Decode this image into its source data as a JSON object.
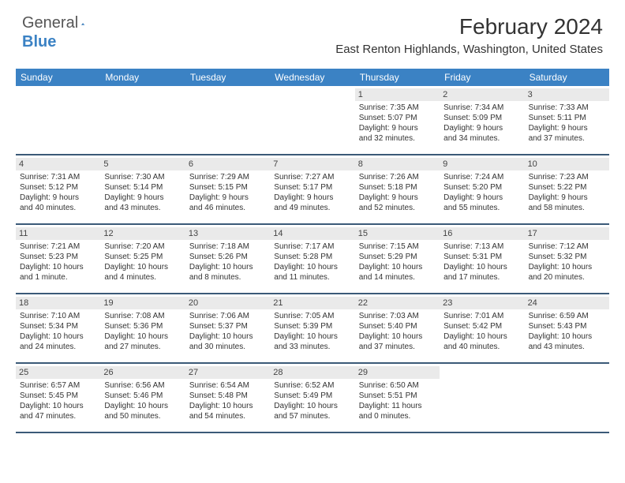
{
  "brand": {
    "general": "General",
    "blue": "Blue"
  },
  "title": "February 2024",
  "location": "East Renton Highlands, Washington, United States",
  "colors": {
    "header_bg": "#3b82c4",
    "header_text": "#ffffff",
    "daynum_bg": "#eaeaea",
    "week_border": "#3b5a78",
    "text": "#333333"
  },
  "daynames": [
    "Sunday",
    "Monday",
    "Tuesday",
    "Wednesday",
    "Thursday",
    "Friday",
    "Saturday"
  ],
  "weeks": [
    [
      {
        "blank": true
      },
      {
        "blank": true
      },
      {
        "blank": true
      },
      {
        "blank": true
      },
      {
        "num": "1",
        "sunrise": "Sunrise: 7:35 AM",
        "sunset": "Sunset: 5:07 PM",
        "day1": "Daylight: 9 hours",
        "day2": "and 32 minutes."
      },
      {
        "num": "2",
        "sunrise": "Sunrise: 7:34 AM",
        "sunset": "Sunset: 5:09 PM",
        "day1": "Daylight: 9 hours",
        "day2": "and 34 minutes."
      },
      {
        "num": "3",
        "sunrise": "Sunrise: 7:33 AM",
        "sunset": "Sunset: 5:11 PM",
        "day1": "Daylight: 9 hours",
        "day2": "and 37 minutes."
      }
    ],
    [
      {
        "num": "4",
        "sunrise": "Sunrise: 7:31 AM",
        "sunset": "Sunset: 5:12 PM",
        "day1": "Daylight: 9 hours",
        "day2": "and 40 minutes."
      },
      {
        "num": "5",
        "sunrise": "Sunrise: 7:30 AM",
        "sunset": "Sunset: 5:14 PM",
        "day1": "Daylight: 9 hours",
        "day2": "and 43 minutes."
      },
      {
        "num": "6",
        "sunrise": "Sunrise: 7:29 AM",
        "sunset": "Sunset: 5:15 PM",
        "day1": "Daylight: 9 hours",
        "day2": "and 46 minutes."
      },
      {
        "num": "7",
        "sunrise": "Sunrise: 7:27 AM",
        "sunset": "Sunset: 5:17 PM",
        "day1": "Daylight: 9 hours",
        "day2": "and 49 minutes."
      },
      {
        "num": "8",
        "sunrise": "Sunrise: 7:26 AM",
        "sunset": "Sunset: 5:18 PM",
        "day1": "Daylight: 9 hours",
        "day2": "and 52 minutes."
      },
      {
        "num": "9",
        "sunrise": "Sunrise: 7:24 AM",
        "sunset": "Sunset: 5:20 PM",
        "day1": "Daylight: 9 hours",
        "day2": "and 55 minutes."
      },
      {
        "num": "10",
        "sunrise": "Sunrise: 7:23 AM",
        "sunset": "Sunset: 5:22 PM",
        "day1": "Daylight: 9 hours",
        "day2": "and 58 minutes."
      }
    ],
    [
      {
        "num": "11",
        "sunrise": "Sunrise: 7:21 AM",
        "sunset": "Sunset: 5:23 PM",
        "day1": "Daylight: 10 hours",
        "day2": "and 1 minute."
      },
      {
        "num": "12",
        "sunrise": "Sunrise: 7:20 AM",
        "sunset": "Sunset: 5:25 PM",
        "day1": "Daylight: 10 hours",
        "day2": "and 4 minutes."
      },
      {
        "num": "13",
        "sunrise": "Sunrise: 7:18 AM",
        "sunset": "Sunset: 5:26 PM",
        "day1": "Daylight: 10 hours",
        "day2": "and 8 minutes."
      },
      {
        "num": "14",
        "sunrise": "Sunrise: 7:17 AM",
        "sunset": "Sunset: 5:28 PM",
        "day1": "Daylight: 10 hours",
        "day2": "and 11 minutes."
      },
      {
        "num": "15",
        "sunrise": "Sunrise: 7:15 AM",
        "sunset": "Sunset: 5:29 PM",
        "day1": "Daylight: 10 hours",
        "day2": "and 14 minutes."
      },
      {
        "num": "16",
        "sunrise": "Sunrise: 7:13 AM",
        "sunset": "Sunset: 5:31 PM",
        "day1": "Daylight: 10 hours",
        "day2": "and 17 minutes."
      },
      {
        "num": "17",
        "sunrise": "Sunrise: 7:12 AM",
        "sunset": "Sunset: 5:32 PM",
        "day1": "Daylight: 10 hours",
        "day2": "and 20 minutes."
      }
    ],
    [
      {
        "num": "18",
        "sunrise": "Sunrise: 7:10 AM",
        "sunset": "Sunset: 5:34 PM",
        "day1": "Daylight: 10 hours",
        "day2": "and 24 minutes."
      },
      {
        "num": "19",
        "sunrise": "Sunrise: 7:08 AM",
        "sunset": "Sunset: 5:36 PM",
        "day1": "Daylight: 10 hours",
        "day2": "and 27 minutes."
      },
      {
        "num": "20",
        "sunrise": "Sunrise: 7:06 AM",
        "sunset": "Sunset: 5:37 PM",
        "day1": "Daylight: 10 hours",
        "day2": "and 30 minutes."
      },
      {
        "num": "21",
        "sunrise": "Sunrise: 7:05 AM",
        "sunset": "Sunset: 5:39 PM",
        "day1": "Daylight: 10 hours",
        "day2": "and 33 minutes."
      },
      {
        "num": "22",
        "sunrise": "Sunrise: 7:03 AM",
        "sunset": "Sunset: 5:40 PM",
        "day1": "Daylight: 10 hours",
        "day2": "and 37 minutes."
      },
      {
        "num": "23",
        "sunrise": "Sunrise: 7:01 AM",
        "sunset": "Sunset: 5:42 PM",
        "day1": "Daylight: 10 hours",
        "day2": "and 40 minutes."
      },
      {
        "num": "24",
        "sunrise": "Sunrise: 6:59 AM",
        "sunset": "Sunset: 5:43 PM",
        "day1": "Daylight: 10 hours",
        "day2": "and 43 minutes."
      }
    ],
    [
      {
        "num": "25",
        "sunrise": "Sunrise: 6:57 AM",
        "sunset": "Sunset: 5:45 PM",
        "day1": "Daylight: 10 hours",
        "day2": "and 47 minutes."
      },
      {
        "num": "26",
        "sunrise": "Sunrise: 6:56 AM",
        "sunset": "Sunset: 5:46 PM",
        "day1": "Daylight: 10 hours",
        "day2": "and 50 minutes."
      },
      {
        "num": "27",
        "sunrise": "Sunrise: 6:54 AM",
        "sunset": "Sunset: 5:48 PM",
        "day1": "Daylight: 10 hours",
        "day2": "and 54 minutes."
      },
      {
        "num": "28",
        "sunrise": "Sunrise: 6:52 AM",
        "sunset": "Sunset: 5:49 PM",
        "day1": "Daylight: 10 hours",
        "day2": "and 57 minutes."
      },
      {
        "num": "29",
        "sunrise": "Sunrise: 6:50 AM",
        "sunset": "Sunset: 5:51 PM",
        "day1": "Daylight: 11 hours",
        "day2": "and 0 minutes."
      },
      {
        "blank": true
      },
      {
        "blank": true
      }
    ]
  ]
}
